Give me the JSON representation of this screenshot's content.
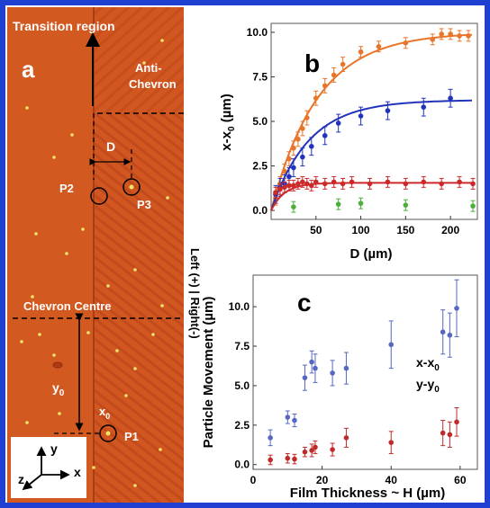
{
  "panel_a": {
    "letter": "a",
    "transition_label": "Transition region",
    "anti_chevron_label": "Anti-\nChevron",
    "d_label": "D",
    "p1": "P1",
    "p2": "P2",
    "p3": "P3",
    "chevron_centre": "Chevron Centre",
    "y0_label": "y",
    "y0_sub": "0",
    "x0_label": "x",
    "x0_sub": "0",
    "side_label": "Left (+)  |  Right(-)",
    "axis_x": "x",
    "axis_y": "y",
    "axis_z": "z",
    "colors": {
      "film": "#d2581e",
      "stripe": "#b7441a",
      "particle": "#f2e36a"
    }
  },
  "chart_data": [
    {
      "type": "line",
      "panel_letter": "b",
      "xlabel": "D (µm)",
      "ylabel": "x-x",
      "ylabel_sub": "0",
      "ylabel_unit": " (µm)",
      "xlim": [
        0,
        230
      ],
      "ylim": [
        -0.5,
        10.5
      ],
      "xticks": [
        50,
        100,
        150,
        200
      ],
      "yticks": [
        0.0,
        2.5,
        5.0,
        7.5,
        10.0
      ],
      "series": [
        {
          "color": "#e8752a",
          "fit": {
            "a": 10.0,
            "tau": 52
          },
          "x": [
            5,
            10,
            15,
            20,
            25,
            30,
            35,
            40,
            50,
            60,
            70,
            80,
            100,
            120,
            150,
            180,
            190,
            200,
            210,
            220
          ],
          "y": [
            0.7,
            1.5,
            2.2,
            2.9,
            3.5,
            4.0,
            4.6,
            5.2,
            6.3,
            7.0,
            7.6,
            8.2,
            8.9,
            9.2,
            9.4,
            9.6,
            9.9,
            9.9,
            9.8,
            9.8
          ],
          "err": [
            0.4,
            0.4,
            0.4,
            0.4,
            0.4,
            0.4,
            0.4,
            0.4,
            0.4,
            0.4,
            0.4,
            0.4,
            0.3,
            0.3,
            0.3,
            0.3,
            0.3,
            0.3,
            0.3,
            0.3
          ]
        },
        {
          "color": "#2233bb",
          "fit": {
            "a": 6.2,
            "tau": 42
          },
          "x": [
            5,
            10,
            15,
            20,
            25,
            35,
            45,
            60,
            75,
            100,
            130,
            170,
            200
          ],
          "y": [
            0.9,
            1.3,
            1.5,
            1.9,
            2.4,
            3.0,
            3.6,
            4.2,
            4.9,
            5.3,
            5.6,
            5.8,
            6.3
          ],
          "err": [
            0.5,
            0.5,
            0.5,
            0.5,
            0.5,
            0.5,
            0.5,
            0.5,
            0.5,
            0.5,
            0.5,
            0.5,
            0.5
          ]
        },
        {
          "color": "#cc2a2a",
          "fit": {
            "a": 1.55,
            "tau": 15
          },
          "x": [
            5,
            10,
            15,
            20,
            25,
            30,
            35,
            40,
            45,
            50,
            60,
            70,
            80,
            90,
            110,
            130,
            150,
            170,
            190,
            210,
            225
          ],
          "y": [
            1.0,
            1.2,
            1.3,
            1.4,
            1.4,
            1.5,
            1.6,
            1.5,
            1.4,
            1.6,
            1.5,
            1.6,
            1.5,
            1.6,
            1.5,
            1.6,
            1.5,
            1.6,
            1.5,
            1.6,
            1.5
          ],
          "err": [
            0.3,
            0.3,
            0.3,
            0.3,
            0.3,
            0.3,
            0.3,
            0.3,
            0.3,
            0.3,
            0.3,
            0.3,
            0.3,
            0.3,
            0.3,
            0.3,
            0.3,
            0.3,
            0.3,
            0.3,
            0.3
          ]
        },
        {
          "color": "#4caf3a",
          "fit": null,
          "x": [
            25,
            75,
            100,
            150,
            225
          ],
          "y": [
            0.2,
            0.35,
            0.4,
            0.3,
            0.25
          ],
          "err": [
            0.3,
            0.3,
            0.3,
            0.3,
            0.3
          ]
        }
      ]
    },
    {
      "type": "scatter",
      "panel_letter": "c",
      "xlabel": "Film Thickness ~ H (µm)",
      "ylabel": "Particle Movement (µm)",
      "xlim": [
        0,
        65
      ],
      "ylim": [
        -0.3,
        12
      ],
      "xticks": [
        0,
        20,
        40,
        60
      ],
      "yticks": [
        0.0,
        2.5,
        5.0,
        7.5,
        10.0
      ],
      "legend": [
        {
          "text": "x-x",
          "sub": "0"
        },
        {
          "text": "y-y",
          "sub": "0"
        }
      ],
      "series": [
        {
          "color": "#5567c0",
          "x": [
            5,
            10,
            12,
            15,
            17,
            18,
            23,
            27,
            40,
            55,
            57,
            59
          ],
          "y": [
            1.7,
            3.0,
            2.8,
            5.5,
            6.5,
            6.1,
            5.8,
            6.1,
            7.6,
            8.4,
            8.2,
            9.9
          ],
          "err": [
            0.5,
            0.4,
            0.4,
            0.8,
            0.7,
            0.9,
            0.8,
            1.0,
            1.5,
            1.4,
            1.4,
            1.8
          ]
        },
        {
          "color": "#c02a2a",
          "x": [
            5,
            10,
            12,
            15,
            17,
            18,
            23,
            27,
            40,
            55,
            57,
            59
          ],
          "y": [
            0.3,
            0.4,
            0.35,
            0.8,
            0.9,
            1.1,
            0.95,
            1.7,
            1.4,
            2.0,
            1.9,
            2.7
          ],
          "err": [
            0.3,
            0.3,
            0.3,
            0.3,
            0.4,
            0.4,
            0.4,
            0.6,
            0.7,
            0.8,
            0.8,
            0.9
          ]
        }
      ]
    }
  ]
}
